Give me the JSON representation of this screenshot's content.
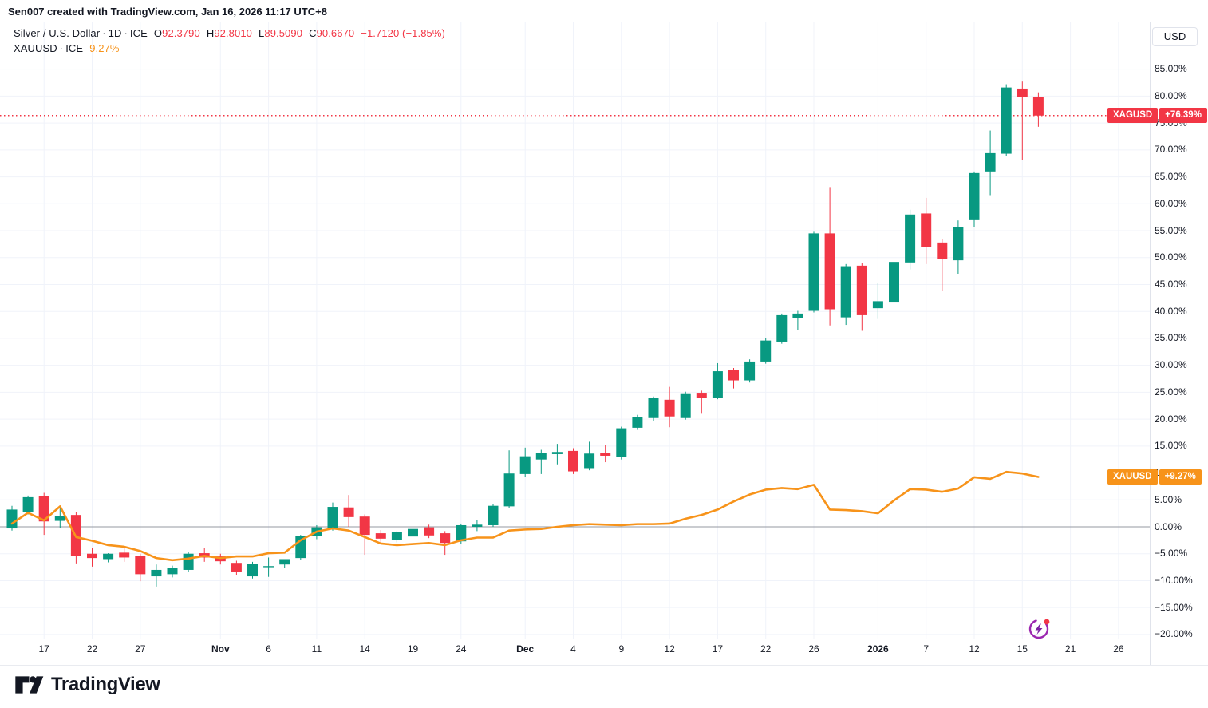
{
  "header": {
    "note": "Sen007 created with TradingView.com, Jan 16, 2026 11:17 UTC+8"
  },
  "legend": {
    "row1": {
      "symbol": "Silver / U.S. Dollar",
      "interval": "1D",
      "exchange": "ICE",
      "separator": "·",
      "ohlc": [
        {
          "k": "O",
          "v": "92.3790"
        },
        {
          "k": "H",
          "v": "92.8010"
        },
        {
          "k": "L",
          "v": "89.5090"
        },
        {
          "k": "C",
          "v": "90.6670"
        }
      ],
      "change": "−1.7120 (−1.85%)"
    },
    "row2": {
      "symbol": "XAUUSD",
      "exchange": "ICE",
      "separator": "·",
      "value": "9.27%"
    }
  },
  "axis": {
    "currency_button": "USD",
    "y_ticks": [
      {
        "pct": 85,
        "label": "85.00%"
      },
      {
        "pct": 80,
        "label": "80.00%"
      },
      {
        "pct": 75,
        "label": "75.00%"
      },
      {
        "pct": 70,
        "label": "70.00%"
      },
      {
        "pct": 65,
        "label": "65.00%"
      },
      {
        "pct": 60,
        "label": "60.00%"
      },
      {
        "pct": 55,
        "label": "55.00%"
      },
      {
        "pct": 50,
        "label": "50.00%"
      },
      {
        "pct": 45,
        "label": "45.00%"
      },
      {
        "pct": 40,
        "label": "40.00%"
      },
      {
        "pct": 35,
        "label": "35.00%"
      },
      {
        "pct": 30,
        "label": "30.00%"
      },
      {
        "pct": 25,
        "label": "25.00%"
      },
      {
        "pct": 20,
        "label": "20.00%"
      },
      {
        "pct": 15,
        "label": "15.00%"
      },
      {
        "pct": 10,
        "label": "10.00%"
      },
      {
        "pct": 5,
        "label": "5.00%"
      },
      {
        "pct": 0,
        "label": "0.00%"
      },
      {
        "pct": -5,
        "label": "−5.00%"
      },
      {
        "pct": -10,
        "label": "−10.00%"
      },
      {
        "pct": -15,
        "label": "−15.00%"
      },
      {
        "pct": -20,
        "label": "−20.00%"
      }
    ],
    "x_ticks": [
      {
        "label": "17",
        "bar": 2,
        "bold": false
      },
      {
        "label": "22",
        "bar": 5,
        "bold": false
      },
      {
        "label": "27",
        "bar": 8,
        "bold": false
      },
      {
        "label": "Nov",
        "bar": 13,
        "bold": true
      },
      {
        "label": "6",
        "bar": 16,
        "bold": false
      },
      {
        "label": "11",
        "bar": 19,
        "bold": false
      },
      {
        "label": "14",
        "bar": 22,
        "bold": false
      },
      {
        "label": "19",
        "bar": 25,
        "bold": false
      },
      {
        "label": "24",
        "bar": 28,
        "bold": false
      },
      {
        "label": "Dec",
        "bar": 32,
        "bold": true
      },
      {
        "label": "4",
        "bar": 35,
        "bold": false
      },
      {
        "label": "9",
        "bar": 38,
        "bold": false
      },
      {
        "label": "12",
        "bar": 41,
        "bold": false
      },
      {
        "label": "17",
        "bar": 44,
        "bold": false
      },
      {
        "label": "22",
        "bar": 47,
        "bold": false
      },
      {
        "label": "26",
        "bar": 50,
        "bold": false
      },
      {
        "label": "2026",
        "bar": 54,
        "bold": true
      },
      {
        "label": "7",
        "bar": 57,
        "bold": false
      },
      {
        "label": "12",
        "bar": 60,
        "bold": false
      },
      {
        "label": "15",
        "bar": 63,
        "bold": false
      },
      {
        "label": "21",
        "bar": 66,
        "bold": false
      },
      {
        "label": "26",
        "bar": 69,
        "bold": false
      }
    ]
  },
  "price_labels": [
    {
      "symbol": "XAGUSD",
      "value": "+76.39%",
      "pct": 76.39,
      "color": "#F23645",
      "dotted_line": true
    },
    {
      "symbol": "XAUUSD",
      "value": "+9.27%",
      "pct": 9.27,
      "color": "#F7931A",
      "dotted_line": false
    }
  ],
  "colors": {
    "up": "#089981",
    "down": "#F23645",
    "compare_line": "#F7931A",
    "grid": "#F0F3FA",
    "zero_line": "#9598A1",
    "text": "#131722",
    "axis_border": "#E0E3EB",
    "flash_purple": "#9C27B0",
    "notif_red": "#F23645"
  },
  "footer": {
    "brand": "TradingView"
  },
  "chart_data": {
    "type": "candlestick+line",
    "title": "Silver / U.S. Dollar · 1D · ICE vs XAUUSD · ICE (percent change)",
    "ylabel": "% change",
    "ylim": [
      -20,
      85
    ],
    "grid": true,
    "series": [
      {
        "name": "XAGUSD",
        "type": "candlestick",
        "unit": "percent",
        "last_value": 76.39,
        "ohlc": [
          [
            -0.3,
            3.9,
            -0.7,
            3.2
          ],
          [
            2.8,
            5.8,
            2.3,
            5.5
          ],
          [
            5.7,
            6.3,
            -1.5,
            1.0
          ],
          [
            1.1,
            3.6,
            -0.3,
            2.0
          ],
          [
            2.2,
            2.8,
            -6.8,
            -5.4
          ],
          [
            -5.0,
            -4.0,
            -7.4,
            -5.8
          ],
          [
            -6.0,
            -4.9,
            -6.6,
            -5.0
          ],
          [
            -4.8,
            -4.0,
            -6.5,
            -5.7
          ],
          [
            -5.4,
            -5.0,
            -10.1,
            -8.8
          ],
          [
            -9.2,
            -7.0,
            -11.1,
            -8.0
          ],
          [
            -8.8,
            -7.2,
            -9.4,
            -7.7
          ],
          [
            -8.0,
            -4.6,
            -8.4,
            -5.0
          ],
          [
            -4.9,
            -4.0,
            -6.5,
            -5.7
          ],
          [
            -5.5,
            -5.0,
            -7.0,
            -6.4
          ],
          [
            -6.7,
            -6.3,
            -8.9,
            -8.3
          ],
          [
            -9.2,
            -6.5,
            -9.6,
            -6.9
          ],
          [
            -7.5,
            -5.7,
            -9.3,
            -7.3
          ],
          [
            -7.0,
            -6.3,
            -7.7,
            -6.0
          ],
          [
            -5.8,
            -1.5,
            -6.2,
            -1.7
          ],
          [
            -1.7,
            0.3,
            -2.3,
            -0.1
          ],
          [
            -0.4,
            4.5,
            -0.7,
            3.7
          ],
          [
            3.6,
            5.9,
            0.0,
            1.8
          ],
          [
            1.9,
            2.3,
            -5.2,
            -1.5
          ],
          [
            -1.2,
            -0.6,
            -2.8,
            -2.2
          ],
          [
            -2.4,
            -0.8,
            -2.9,
            -1.0
          ],
          [
            -1.8,
            2.2,
            -3.3,
            -0.4
          ],
          [
            -0.1,
            0.4,
            -2.1,
            -1.6
          ],
          [
            -1.2,
            -0.8,
            -5.2,
            -3.0
          ],
          [
            -2.7,
            0.6,
            -3.2,
            0.3
          ],
          [
            0.0,
            1.2,
            -0.8,
            0.4
          ],
          [
            0.3,
            4.2,
            0.0,
            3.9
          ],
          [
            3.8,
            14.2,
            3.5,
            9.9
          ],
          [
            9.8,
            14.7,
            9.3,
            13.1
          ],
          [
            12.5,
            14.3,
            9.8,
            13.7
          ],
          [
            13.5,
            15.4,
            11.6,
            13.9
          ],
          [
            14.1,
            14.6,
            9.8,
            10.3
          ],
          [
            10.9,
            15.8,
            10.5,
            13.6
          ],
          [
            13.7,
            15.2,
            12.0,
            13.2
          ],
          [
            12.9,
            18.6,
            12.5,
            18.3
          ],
          [
            18.4,
            20.8,
            18.0,
            20.4
          ],
          [
            20.2,
            24.2,
            19.6,
            23.9
          ],
          [
            23.6,
            26.0,
            18.5,
            20.5
          ],
          [
            20.2,
            25.1,
            19.9,
            24.8
          ],
          [
            24.9,
            25.3,
            21.0,
            23.9
          ],
          [
            24.0,
            30.4,
            23.7,
            28.9
          ],
          [
            29.1,
            29.5,
            25.7,
            27.2
          ],
          [
            27.2,
            31.1,
            26.8,
            30.7
          ],
          [
            30.7,
            35.0,
            30.3,
            34.6
          ],
          [
            34.4,
            39.6,
            34.0,
            39.3
          ],
          [
            38.8,
            40.1,
            36.6,
            39.6
          ],
          [
            40.1,
            54.8,
            39.8,
            54.5
          ],
          [
            54.5,
            63.1,
            37.4,
            40.4
          ],
          [
            38.9,
            48.8,
            37.5,
            48.4
          ],
          [
            48.5,
            49.0,
            36.4,
            39.3
          ],
          [
            40.6,
            45.3,
            38.6,
            41.9
          ],
          [
            41.8,
            52.4,
            41.2,
            49.2
          ],
          [
            49.1,
            58.9,
            47.8,
            58.0
          ],
          [
            58.2,
            61.1,
            48.8,
            52.0
          ],
          [
            52.8,
            53.4,
            43.8,
            49.7
          ],
          [
            49.5,
            56.9,
            47.0,
            55.6
          ],
          [
            57.1,
            66.0,
            55.6,
            65.7
          ],
          [
            66.0,
            73.6,
            61.6,
            69.4
          ],
          [
            69.3,
            82.2,
            68.8,
            81.6
          ],
          [
            81.4,
            82.7,
            68.2,
            79.9
          ],
          [
            79.8,
            80.7,
            74.3,
            76.39
          ]
        ]
      },
      {
        "name": "XAUUSD",
        "type": "line",
        "unit": "percent",
        "last_value": 9.27,
        "values": [
          0.6,
          2.6,
          1.2,
          3.8,
          -1.9,
          -2.6,
          -3.4,
          -3.7,
          -4.5,
          -5.8,
          -6.2,
          -5.9,
          -5.4,
          -5.8,
          -5.5,
          -5.5,
          -4.9,
          -4.8,
          -2.5,
          -0.9,
          -0.3,
          -0.7,
          -1.9,
          -3.1,
          -3.4,
          -3.2,
          -3.0,
          -3.4,
          -2.5,
          -2.0,
          -2.0,
          -0.7,
          -0.5,
          -0.4,
          0.0,
          0.3,
          0.5,
          0.4,
          0.3,
          0.5,
          0.5,
          0.6,
          1.5,
          2.2,
          3.2,
          4.7,
          6.0,
          6.9,
          7.2,
          7.0,
          7.8,
          3.2,
          3.1,
          2.9,
          2.5,
          4.9,
          7.0,
          6.9,
          6.5,
          7.1,
          9.2,
          8.9,
          10.2,
          9.9,
          9.27
        ]
      }
    ]
  }
}
